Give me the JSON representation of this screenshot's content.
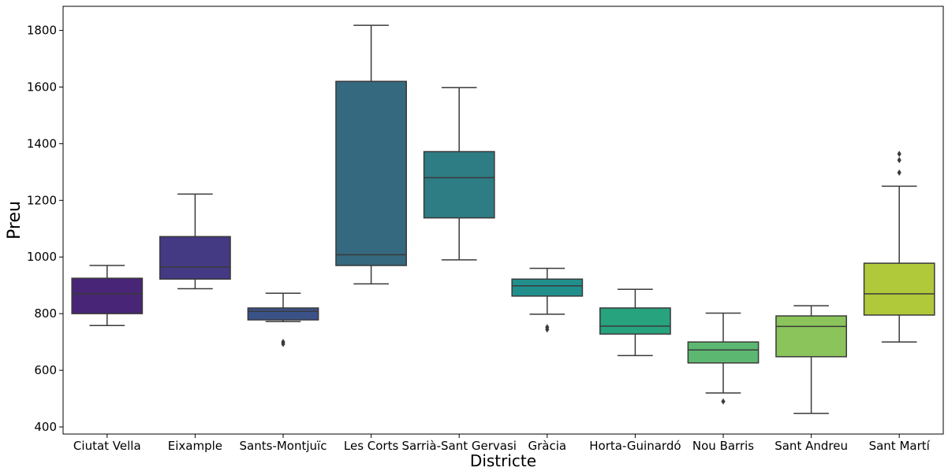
{
  "chart_data": {
    "type": "box",
    "xlabel": "Districte",
    "ylabel": "Preu",
    "ylim": [
      375,
      1885
    ],
    "yticks": [
      400,
      600,
      800,
      1000,
      1200,
      1400,
      1600,
      1800
    ],
    "grid": false,
    "categories": [
      "Ciutat Vella",
      "Eixample",
      "Sants-Montjuïc",
      "Les Corts",
      "Sarrià-Sant Gervasi",
      "Gràcia",
      "Horta-Guinardó",
      "Nou Barris",
      "Sant Andreu",
      "Sant Martí"
    ],
    "boxes": [
      {
        "whisker_low": 758,
        "q1": 800,
        "median": 870,
        "q3": 925,
        "whisker_high": 970,
        "outliers": [],
        "color": "#482576"
      },
      {
        "whisker_low": 888,
        "q1": 922,
        "median": 965,
        "q3": 1072,
        "whisker_high": 1222,
        "outliers": [],
        "color": "#443983"
      },
      {
        "whisker_low": 772,
        "q1": 778,
        "median": 808,
        "q3": 820,
        "whisker_high": 872,
        "outliers": [
          700,
          693
        ],
        "color": "#3b5289"
      },
      {
        "whisker_low": 905,
        "q1": 970,
        "median": 1008,
        "q3": 1620,
        "whisker_high": 1818,
        "outliers": [],
        "color": "#35697f"
      },
      {
        "whisker_low": 990,
        "q1": 1138,
        "median": 1280,
        "q3": 1372,
        "whisker_high": 1598,
        "outliers": [],
        "color": "#2e7c84"
      },
      {
        "whisker_low": 798,
        "q1": 862,
        "median": 898,
        "q3": 922,
        "whisker_high": 960,
        "outliers": [
          752,
          744
        ],
        "color": "#21908d"
      },
      {
        "whisker_low": 652,
        "q1": 728,
        "median": 756,
        "q3": 820,
        "whisker_high": 886,
        "outliers": [],
        "color": "#27a37e"
      },
      {
        "whisker_low": 520,
        "q1": 626,
        "median": 672,
        "q3": 700,
        "whisker_high": 802,
        "outliers": [
          490
        ],
        "color": "#5cb871"
      },
      {
        "whisker_low": 448,
        "q1": 648,
        "median": 755,
        "q3": 792,
        "whisker_high": 828,
        "outliers": [],
        "color": "#8ac45a"
      },
      {
        "whisker_low": 700,
        "q1": 795,
        "median": 870,
        "q3": 978,
        "whisker_high": 1250,
        "outliers": [
          1298,
          1342,
          1364
        ],
        "color": "#b0c93a"
      }
    ]
  }
}
